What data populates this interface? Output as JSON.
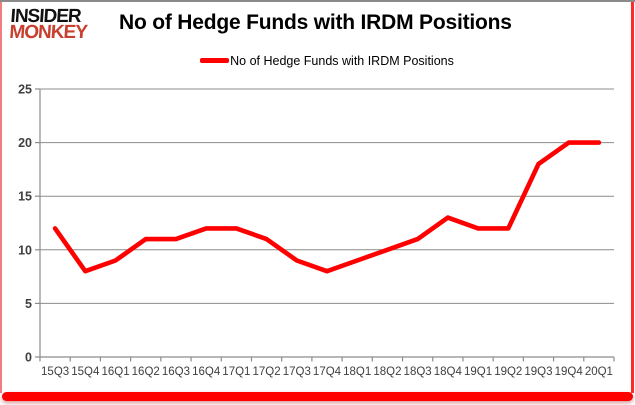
{
  "logo": {
    "top": "INSIDER",
    "bottom": "MONKEY"
  },
  "header": {
    "title": "No of Hedge Funds with IRDM Positions"
  },
  "legend": {
    "label": "No of Hedge Funds with IRDM Positions"
  },
  "colors": {
    "series": "#FF0000",
    "logo_top": "#111111",
    "logo_bottom": "#C8402F",
    "grid": "#8C8C8C",
    "axis_text": "#3F3F3F",
    "border_accent": "#FF0000"
  },
  "chart_data": {
    "type": "line",
    "title": "No of Hedge Funds with IRDM Positions",
    "categories": [
      "15Q3",
      "15Q4",
      "16Q1",
      "16Q2",
      "16Q3",
      "16Q4",
      "17Q1",
      "17Q2",
      "17Q3",
      "17Q4",
      "18Q1",
      "18Q2",
      "18Q3",
      "18Q4",
      "19Q1",
      "19Q2",
      "19Q3",
      "19Q4",
      "20Q1"
    ],
    "series": [
      {
        "name": "No of Hedge Funds with IRDM Positions",
        "color": "#FF0000",
        "values": [
          12,
          8,
          9,
          11,
          11,
          12,
          12,
          11,
          9,
          8,
          9,
          10,
          11,
          13,
          12,
          12,
          18,
          20,
          20
        ]
      }
    ],
    "xlabel": "",
    "ylabel": "",
    "ylim": [
      0,
      25
    ],
    "yticks": [
      0,
      5,
      10,
      15,
      20,
      25
    ],
    "grid": true,
    "legend_position": "top-center"
  }
}
